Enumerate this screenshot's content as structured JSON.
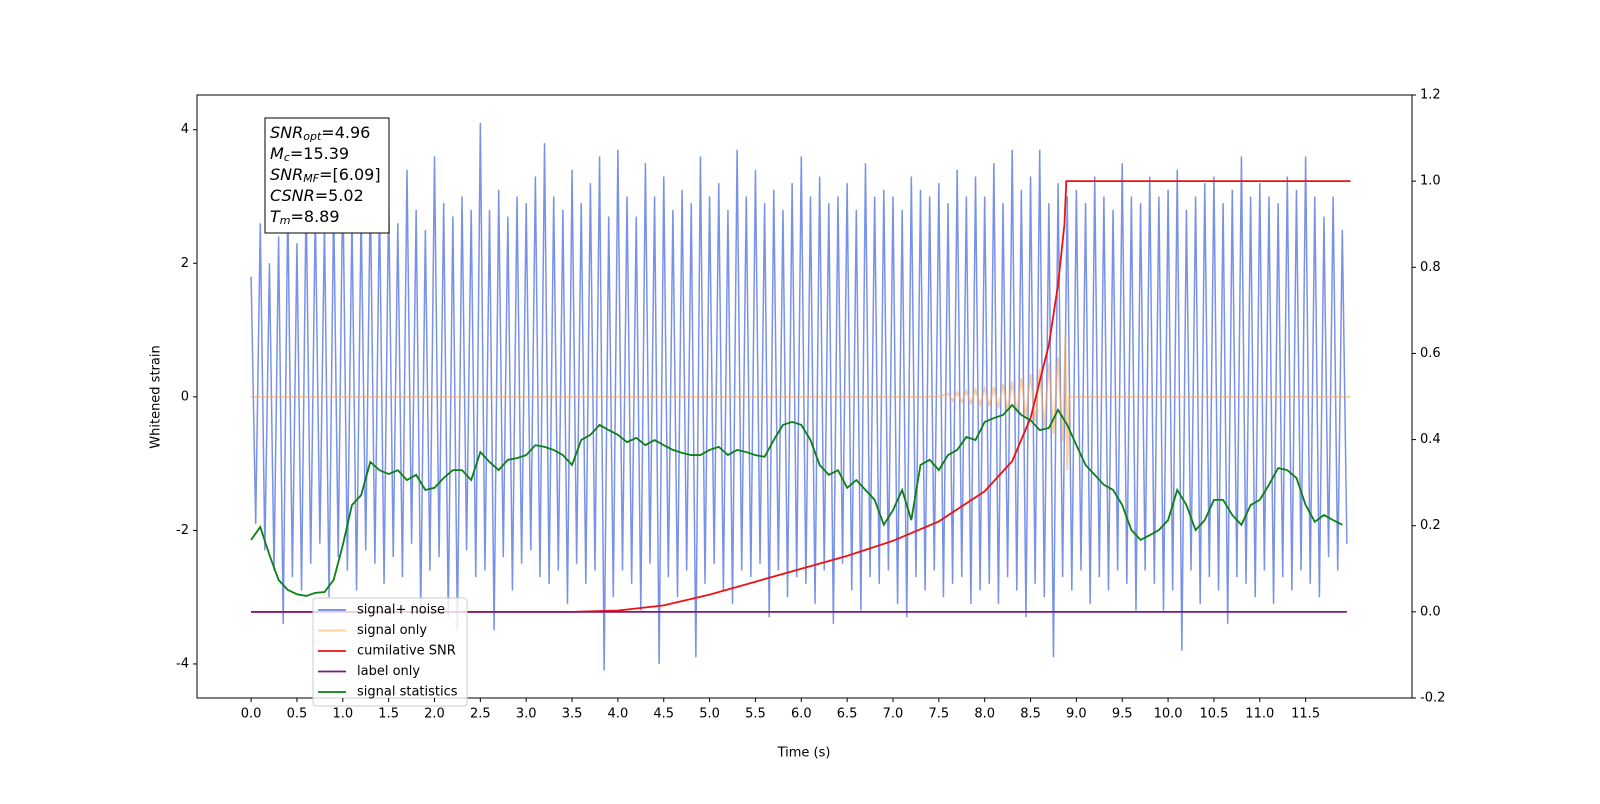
{
  "chart_data": {
    "type": "line",
    "x_label": "Time (s)",
    "y_label": "Whitened strain",
    "xlim": [
      -0.59,
      12.66
    ],
    "ylim": [
      -4.51,
      4.52
    ],
    "y2lim": [
      -0.2,
      1.2
    ],
    "xticks": [
      {
        "value": 0,
        "label": "0.0"
      },
      0.5,
      {
        "value": 1,
        "label": "1.0"
      },
      1.5,
      {
        "value": 2,
        "label": "2.0"
      },
      2.5,
      {
        "value": 3,
        "label": "3.0"
      },
      3.5,
      {
        "value": 4,
        "label": "4.0"
      },
      4.5,
      {
        "value": 5,
        "label": "5.0"
      },
      5.5,
      {
        "value": 6,
        "label": "6.0"
      },
      6.5,
      {
        "value": 7,
        "label": "7.0"
      },
      7.5,
      {
        "value": 8,
        "label": "8.0"
      },
      8.5,
      {
        "value": 9,
        "label": "9.0"
      },
      9.5,
      {
        "value": 10,
        "label": "10.0"
      },
      10.5,
      {
        "value": 11,
        "label": "11.0"
      },
      11.5
    ],
    "yticks": [
      -4,
      -2,
      0,
      2,
      4
    ],
    "y2ticks": [
      -0.2,
      {
        "value": 0,
        "label": "0.0"
      },
      0.2,
      0.4,
      0.6,
      0.8,
      {
        "value": 1,
        "label": "1.0"
      },
      1.2
    ],
    "annotation": [
      {
        "main": "SNR",
        "sub": "opt",
        "rest": "=4.96"
      },
      {
        "main": "M",
        "sub": "c",
        "rest": "=15.39"
      },
      {
        "main": "SNR",
        "sub": "MF",
        "rest": "=[6.09]"
      },
      {
        "main": "CSNR",
        "rest": "=5.02"
      },
      {
        "main": "T",
        "sub": "m",
        "rest": "=8.89"
      }
    ],
    "series": [
      {
        "name": "signal+ noise",
        "color": "#6a86e6",
        "x": [
          0,
          0.05,
          0.1,
          0.15,
          0.2,
          0.25,
          0.3,
          0.35,
          0.4,
          0.45,
          0.5,
          0.55,
          0.6,
          0.65,
          0.7,
          0.75,
          0.8,
          0.85,
          0.9,
          0.95,
          1,
          1.05,
          1.1,
          1.15,
          1.2,
          1.25,
          1.3,
          1.35,
          1.4,
          1.45,
          1.5,
          1.55,
          1.6,
          1.65,
          1.7,
          1.75,
          1.8,
          1.85,
          1.9,
          1.95,
          2,
          2.05,
          2.1,
          2.15,
          2.2,
          2.25,
          2.3,
          2.35,
          2.4,
          2.45,
          2.5,
          2.55,
          2.6,
          2.65,
          2.7,
          2.75,
          2.8,
          2.85,
          2.9,
          2.95,
          3,
          3.05,
          3.1,
          3.15,
          3.2,
          3.25,
          3.3,
          3.35,
          3.4,
          3.45,
          3.5,
          3.55,
          3.6,
          3.65,
          3.7,
          3.75,
          3.8,
          3.85,
          3.9,
          3.95,
          4,
          4.05,
          4.1,
          4.15,
          4.2,
          4.25,
          4.3,
          4.35,
          4.4,
          4.45,
          4.5,
          4.55,
          4.6,
          4.65,
          4.7,
          4.75,
          4.8,
          4.85,
          4.9,
          4.95,
          5,
          5.05,
          5.1,
          5.15,
          5.2,
          5.25,
          5.3,
          5.35,
          5.4,
          5.45,
          5.5,
          5.55,
          5.6,
          5.65,
          5.7,
          5.75,
          5.8,
          5.85,
          5.9,
          5.95,
          6,
          6.05,
          6.1,
          6.15,
          6.2,
          6.25,
          6.3,
          6.35,
          6.4,
          6.45,
          6.5,
          6.55,
          6.6,
          6.65,
          6.7,
          6.75,
          6.8,
          6.85,
          6.9,
          6.95,
          7,
          7.05,
          7.1,
          7.15,
          7.2,
          7.25,
          7.3,
          7.35,
          7.4,
          7.45,
          7.5,
          7.55,
          7.6,
          7.65,
          7.7,
          7.75,
          7.8,
          7.85,
          7.9,
          7.95,
          8,
          8.05,
          8.1,
          8.15,
          8.2,
          8.25,
          8.3,
          8.35,
          8.4,
          8.45,
          8.5,
          8.55,
          8.6,
          8.65,
          8.7,
          8.75,
          8.8,
          8.85,
          8.9,
          8.95,
          9,
          9.05,
          9.1,
          9.15,
          9.2,
          9.25,
          9.3,
          9.35,
          9.4,
          9.45,
          9.5,
          9.55,
          9.6,
          9.65,
          9.7,
          9.75,
          9.8,
          9.85,
          9.9,
          9.95,
          10,
          10.05,
          10.1,
          10.15,
          10.2,
          10.25,
          10.3,
          10.35,
          10.4,
          10.45,
          10.5,
          10.55,
          10.6,
          10.65,
          10.7,
          10.75,
          10.8,
          10.85,
          10.9,
          10.95,
          11,
          11.05,
          11.1,
          11.15,
          11.2,
          11.25,
          11.3,
          11.35,
          11.4,
          11.45,
          11.5,
          11.55,
          11.6,
          11.65,
          11.7,
          11.75,
          11.8,
          11.85,
          11.9,
          11.95
        ],
        "values": [
          1.8,
          -1.9,
          2.6,
          -2.3,
          2.0,
          -2.6,
          2.4,
          -3.4,
          2.9,
          -2.7,
          2.3,
          -2.9,
          3.0,
          -2.5,
          2.8,
          -2.2,
          2.6,
          -3.0,
          2.9,
          -2.4,
          3.3,
          -2.6,
          2.7,
          -2.9,
          2.8,
          -2.3,
          3.1,
          -2.5,
          2.9,
          -2.8,
          3.0,
          -2.4,
          2.6,
          -2.7,
          3.4,
          -2.2,
          2.8,
          -3.2,
          2.5,
          -2.6,
          3.6,
          -2.4,
          2.9,
          -3.3,
          2.7,
          -3.5,
          3.0,
          -2.3,
          2.8,
          -2.7,
          4.1,
          -2.6,
          2.8,
          -3.5,
          3.1,
          -2.4,
          2.7,
          -2.9,
          3.0,
          -2.5,
          2.9,
          -2.3,
          3.3,
          -2.7,
          3.8,
          -2.8,
          3.0,
          -2.6,
          2.8,
          -3.1,
          3.4,
          -2.5,
          2.9,
          -2.8,
          3.2,
          -2.6,
          3.6,
          -4.1,
          2.7,
          -3.0,
          3.7,
          -2.6,
          3.0,
          -2.8,
          2.7,
          -3.2,
          3.5,
          -2.5,
          3.0,
          -4.0,
          3.3,
          -2.7,
          2.8,
          -3.0,
          3.1,
          -2.6,
          2.9,
          -3.9,
          3.6,
          -2.8,
          3.0,
          -2.5,
          3.2,
          -2.9,
          2.8,
          -3.1,
          3.7,
          -2.6,
          3.0,
          -2.7,
          3.4,
          -2.5,
          2.9,
          -3.3,
          3.1,
          -2.6,
          2.8,
          -3.0,
          3.2,
          -2.7,
          3.6,
          -2.8,
          3.0,
          -3.1,
          3.3,
          -2.6,
          2.9,
          -3.4,
          3.0,
          -2.5,
          3.2,
          -2.9,
          2.8,
          -3.2,
          3.5,
          -2.7,
          3.0,
          -2.8,
          3.1,
          -2.6,
          3.0,
          -3.1,
          2.8,
          -3.3,
          3.3,
          -2.7,
          3.1,
          -2.9,
          3.0,
          -2.6,
          3.2,
          -3.0,
          2.9,
          -2.8,
          3.4,
          -2.7,
          3.0,
          -3.1,
          3.3,
          -2.9,
          3.0,
          -2.8,
          3.5,
          -3.1,
          2.9,
          -2.7,
          3.7,
          -2.9,
          3.1,
          -3.3,
          3.3,
          -2.8,
          3.7,
          -3.0,
          2.9,
          -3.9,
          3.2,
          -2.7,
          3.0,
          -2.9,
          3.1,
          -2.6,
          2.9,
          -3.1,
          3.3,
          -2.7,
          3.0,
          -2.9,
          2.8,
          -2.6,
          3.5,
          -2.8,
          3.0,
          -3.2,
          2.9,
          -2.6,
          3.3,
          -2.8,
          3.0,
          -3.2,
          3.1,
          -2.9,
          3.4,
          -3.8,
          2.8,
          -2.6,
          3.0,
          -3.1,
          3.2,
          -2.7,
          3.3,
          -2.9,
          2.9,
          -3.4,
          3.1,
          -2.7,
          3.6,
          -2.8,
          3.0,
          -3.0,
          3.2,
          -2.6,
          3.0,
          -3.1,
          2.9,
          -2.7,
          3.3,
          -2.9,
          3.1,
          -2.6,
          3.6,
          -2.8,
          3.0,
          -3.0,
          2.7,
          -2.4,
          3.0,
          -2.6,
          2.5,
          -2.2
        ]
      },
      {
        "name": "signal only",
        "color": "#ffa64d",
        "x": [
          0,
          7.5,
          7.6,
          7.65,
          7.7,
          7.75,
          7.8,
          7.85,
          7.9,
          7.95,
          8,
          8.05,
          8.1,
          8.15,
          8.2,
          8.25,
          8.3,
          8.35,
          8.4,
          8.45,
          8.5,
          8.55,
          8.6,
          8.65,
          8.7,
          8.75,
          8.8,
          8.85,
          8.88,
          8.9,
          8.92,
          11.99
        ],
        "values": [
          0,
          0,
          0.05,
          -0.06,
          0.07,
          -0.08,
          0.09,
          -0.1,
          0.11,
          -0.12,
          0.13,
          -0.14,
          0.15,
          -0.17,
          0.19,
          -0.21,
          0.23,
          -0.25,
          0.28,
          -0.31,
          0.34,
          -0.38,
          0.42,
          -0.46,
          0.5,
          -0.55,
          0.6,
          -0.66,
          0.9,
          -1.1,
          0,
          0
        ]
      },
      {
        "name": "cumilative SNR",
        "color": "#ee1111",
        "axis": "y2",
        "x": [
          0,
          3.5,
          4,
          4.5,
          5,
          5.5,
          6,
          6.5,
          7,
          7.5,
          8,
          8.3,
          8.5,
          8.7,
          8.8,
          8.87,
          8.89,
          11.99
        ],
        "values": [
          0,
          0,
          0.003,
          0.015,
          0.04,
          0.07,
          0.1,
          0.13,
          0.165,
          0.21,
          0.28,
          0.35,
          0.45,
          0.62,
          0.76,
          0.9,
          1,
          1
        ]
      },
      {
        "name": "label only",
        "color": "#7a1a80",
        "axis": "y2",
        "x": [
          0,
          11.95
        ],
        "values": [
          0,
          0
        ]
      },
      {
        "name": "signal statistics",
        "color": "#0d7f14",
        "axis": "y2",
        "x": [
          0,
          0.1,
          0.2,
          0.3,
          0.4,
          0.5,
          0.6,
          0.7,
          0.8,
          0.9,
          1,
          1.1,
          1.2,
          1.3,
          1.4,
          1.5,
          1.6,
          1.7,
          1.8,
          1.9,
          2,
          2.1,
          2.2,
          2.3,
          2.4,
          2.5,
          2.6,
          2.7,
          2.8,
          2.9,
          3,
          3.1,
          3.2,
          3.3,
          3.4,
          3.5,
          3.6,
          3.7,
          3.8,
          3.9,
          4,
          4.1,
          4.2,
          4.3,
          4.4,
          4.5,
          4.6,
          4.7,
          4.8,
          4.9,
          5,
          5.1,
          5.2,
          5.3,
          5.4,
          5.5,
          5.6,
          5.7,
          5.8,
          5.9,
          6,
          6.1,
          6.2,
          6.3,
          6.4,
          6.5,
          6.6,
          6.7,
          6.8,
          6.9,
          7,
          7.1,
          7.2,
          7.3,
          7.4,
          7.5,
          7.6,
          7.7,
          7.8,
          7.9,
          8,
          8.1,
          8.2,
          8.3,
          8.4,
          8.5,
          8.6,
          8.7,
          8.8,
          8.9,
          9,
          9.1,
          9.2,
          9.3,
          9.4,
          9.5,
          9.6,
          9.7,
          9.8,
          9.9,
          10,
          10.1,
          10.2,
          10.3,
          10.4,
          10.5,
          10.6,
          10.7,
          10.8,
          10.9,
          11,
          11.1,
          11.2,
          11.3,
          11.4,
          11.5,
          11.6,
          11.7,
          11.8,
          11.9
        ],
        "values": [
          0.167,
          0.197,
          0.132,
          0.074,
          0.051,
          0.041,
          0.037,
          0.044,
          0.046,
          0.074,
          0.155,
          0.248,
          0.271,
          0.348,
          0.329,
          0.32,
          0.329,
          0.306,
          0.318,
          0.283,
          0.288,
          0.311,
          0.329,
          0.329,
          0.306,
          0.371,
          0.348,
          0.329,
          0.353,
          0.357,
          0.364,
          0.387,
          0.383,
          0.376,
          0.364,
          0.341,
          0.399,
          0.411,
          0.434,
          0.422,
          0.411,
          0.394,
          0.404,
          0.387,
          0.399,
          0.387,
          0.376,
          0.369,
          0.364,
          0.364,
          0.376,
          0.383,
          0.364,
          0.376,
          0.371,
          0.364,
          0.36,
          0.399,
          0.434,
          0.441,
          0.434,
          0.399,
          0.341,
          0.318,
          0.329,
          0.288,
          0.306,
          0.283,
          0.26,
          0.202,
          0.236,
          0.283,
          0.213,
          0.341,
          0.353,
          0.329,
          0.364,
          0.376,
          0.406,
          0.399,
          0.441,
          0.45,
          0.457,
          0.48,
          0.457,
          0.445,
          0.422,
          0.427,
          0.469,
          0.434,
          0.387,
          0.341,
          0.318,
          0.295,
          0.283,
          0.248,
          0.19,
          0.167,
          0.178,
          0.19,
          0.213,
          0.283,
          0.248,
          0.19,
          0.213,
          0.26,
          0.26,
          0.225,
          0.202,
          0.248,
          0.26,
          0.295,
          0.334,
          0.329,
          0.311,
          0.248,
          0.209,
          0.225,
          0.213,
          0.202
        ]
      }
    ]
  }
}
